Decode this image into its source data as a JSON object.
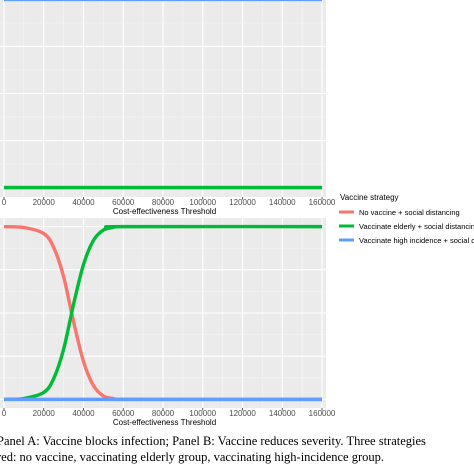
{
  "chart_data": [
    {
      "type": "line",
      "panel": "A",
      "xlabel": "Cost-effectiveness Threshold",
      "ylabel": "",
      "xlim": [
        -2000,
        162000
      ],
      "ylim": [
        -0.05,
        1.05
      ],
      "x_ticks": [
        "0",
        "20000",
        "40000",
        "60000",
        "80000",
        "100000",
        "120000",
        "140000",
        "160000"
      ],
      "grid": true,
      "series": [
        {
          "name": "No vaccine + social distancing",
          "color": "#f8766d",
          "x": [
            0,
            160000
          ],
          "y": [
            0,
            0
          ]
        },
        {
          "name": "Vaccinate elderly + social distancing",
          "color": "#00ba38",
          "x": [
            0,
            160000
          ],
          "y": [
            0,
            0
          ]
        },
        {
          "name": "Vaccinate high incidence + social distancing",
          "color": "#619cff",
          "x": [
            0,
            160000
          ],
          "y": [
            1,
            1
          ]
        }
      ]
    },
    {
      "type": "line",
      "panel": "B",
      "xlabel": "Cost-effectiveness Threshold",
      "ylabel": "",
      "xlim": [
        -2000,
        162000
      ],
      "ylim": [
        -0.05,
        1.05
      ],
      "x_ticks": [
        "0",
        "20000",
        "40000",
        "60000",
        "80000",
        "100000",
        "120000",
        "140000",
        "160000"
      ],
      "grid": true,
      "series": [
        {
          "name": "No vaccine + social distancing",
          "color": "#f8766d",
          "x": [
            0,
            10000,
            20000,
            25000,
            30000,
            35000,
            40000,
            45000,
            50000,
            55000,
            60000,
            160000
          ],
          "y": [
            1.0,
            0.995,
            0.96,
            0.88,
            0.71,
            0.45,
            0.22,
            0.08,
            0.02,
            0.005,
            0.0,
            0.0
          ]
        },
        {
          "name": "Vaccinate elderly + social distancing",
          "color": "#00ba38",
          "x": [
            0,
            10000,
            20000,
            25000,
            30000,
            35000,
            40000,
            45000,
            50000,
            55000,
            60000,
            160000
          ],
          "y": [
            0.0,
            0.005,
            0.04,
            0.12,
            0.29,
            0.55,
            0.78,
            0.92,
            0.98,
            0.995,
            1.0,
            1.0
          ]
        },
        {
          "name": "Vaccinate high incidence + social distancing",
          "color": "#619cff",
          "x": [
            0,
            160000
          ],
          "y": [
            0,
            0
          ]
        }
      ]
    }
  ],
  "legend": {
    "title": "Vaccine strategy",
    "placement": "right",
    "items": [
      {
        "label": "No vaccine + social distancing",
        "color": "#f8766d"
      },
      {
        "label": "Vaccinate elderly + social distancing",
        "color": "#00ba38"
      },
      {
        "label": "Vaccinate high incidence + social distancing",
        "color": "#619cff"
      }
    ]
  },
  "caption": {
    "line1": "Panel A: Vaccine blocks infection; Panel B: Vaccine reduces severity. Three strategies",
    "line2": "red: no vaccine, vaccinating elderly group, vaccinating high-incidence group."
  }
}
